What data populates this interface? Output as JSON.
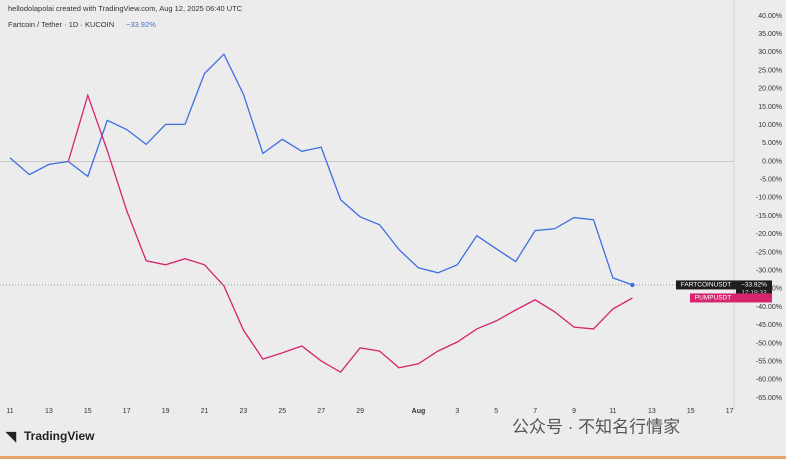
{
  "header": {
    "credit": "hellodolapolai created with TradingView.com, Aug 12, 2025 06:40 UTC",
    "symbol": "Fartcoin / Tether · 1D · KUCOIN",
    "brand": "TradingView",
    "watermark": "公众号 · 不知名行情家"
  },
  "chart_data": {
    "type": "line",
    "categories": [
      "11",
      null,
      "13",
      null,
      "15",
      null,
      "17",
      null,
      "19",
      null,
      "21",
      null,
      "23",
      null,
      "25",
      null,
      "27",
      null,
      "29",
      null,
      null,
      "Aug",
      null,
      "3",
      null,
      "5",
      null,
      "7",
      null,
      "9",
      null,
      "11",
      null,
      "13",
      null,
      "15",
      null,
      "17"
    ],
    "series": [
      {
        "name": "FARTCOINUSDT",
        "color": "#3d6fe0",
        "values": [
          1,
          -3.6,
          -0.8,
          0,
          -4.1,
          11.3,
          8.8,
          4.7,
          10.2,
          10.2,
          24.2,
          29.5,
          18.5,
          2.2,
          6.1,
          2.8,
          3.9,
          -10.5,
          -15.2,
          -17.4,
          -24.2,
          -29.2,
          -30.6,
          -28.4,
          -20.4,
          -24,
          -27.5,
          -19,
          -18.5,
          -15.4,
          -16,
          -32,
          -33.92,
          null,
          null,
          null,
          null,
          null
        ],
        "value_labels": [
          null,
          null,
          null,
          null,
          null,
          null,
          null,
          null,
          null,
          null,
          null,
          null,
          null,
          null,
          null,
          null,
          null,
          null,
          null,
          null,
          null,
          null,
          null,
          null,
          null,
          null,
          null,
          null,
          null,
          null,
          null,
          null,
          "−33.92%",
          null,
          null,
          null,
          null,
          null
        ]
      },
      {
        "name": "PUMPUSDT",
        "color": "#d6246e",
        "values": [
          null,
          null,
          null,
          0,
          18.2,
          3,
          -13.5,
          -27.3,
          -28.4,
          -26.7,
          -28.4,
          -34.2,
          -46.3,
          -54.3,
          -52.6,
          -50.7,
          -54.8,
          -57.9,
          -51.2,
          -52.1,
          -56.7,
          -55.6,
          -52.1,
          -49.6,
          -46,
          -43.8,
          -40.8,
          -38,
          -41.3,
          -45.5,
          -46,
          -40.5,
          -37.5,
          null,
          null,
          null,
          null,
          null
        ]
      }
    ],
    "countdown": "17:19:33",
    "ylim": [
      -65,
      40
    ],
    "yticks": [
      {
        "value": 40,
        "label": "40.00%"
      },
      {
        "value": 35,
        "label": "35.00%"
      },
      {
        "value": 30,
        "label": "30.00%"
      },
      {
        "value": 25,
        "label": "25.00%"
      },
      {
        "value": 20,
        "label": "20.00%"
      },
      {
        "value": 15,
        "label": "15.00%"
      },
      {
        "value": 10,
        "label": "10.00%"
      },
      {
        "value": 5,
        "label": "5.00%"
      },
      {
        "value": 0,
        "label": "0.00%"
      },
      {
        "value": -5,
        "label": "-5.00%"
      },
      {
        "value": -10,
        "label": "-10.00%"
      },
      {
        "value": -15,
        "label": "-15.00%"
      },
      {
        "value": -20,
        "label": "-20.00%"
      },
      {
        "value": -25,
        "label": "-25.00%"
      },
      {
        "value": -30,
        "label": "-30.00%"
      },
      {
        "value": -35,
        "label": "-35.00%"
      },
      {
        "value": -40,
        "label": "-40.00%"
      },
      {
        "value": -45,
        "label": "-45.00%"
      },
      {
        "value": -50,
        "label": "-50.00%"
      },
      {
        "value": -55,
        "label": "-55.00%"
      },
      {
        "value": -60,
        "label": "-60.00%"
      },
      {
        "value": -65,
        "label": "-65.00%"
      }
    ]
  }
}
